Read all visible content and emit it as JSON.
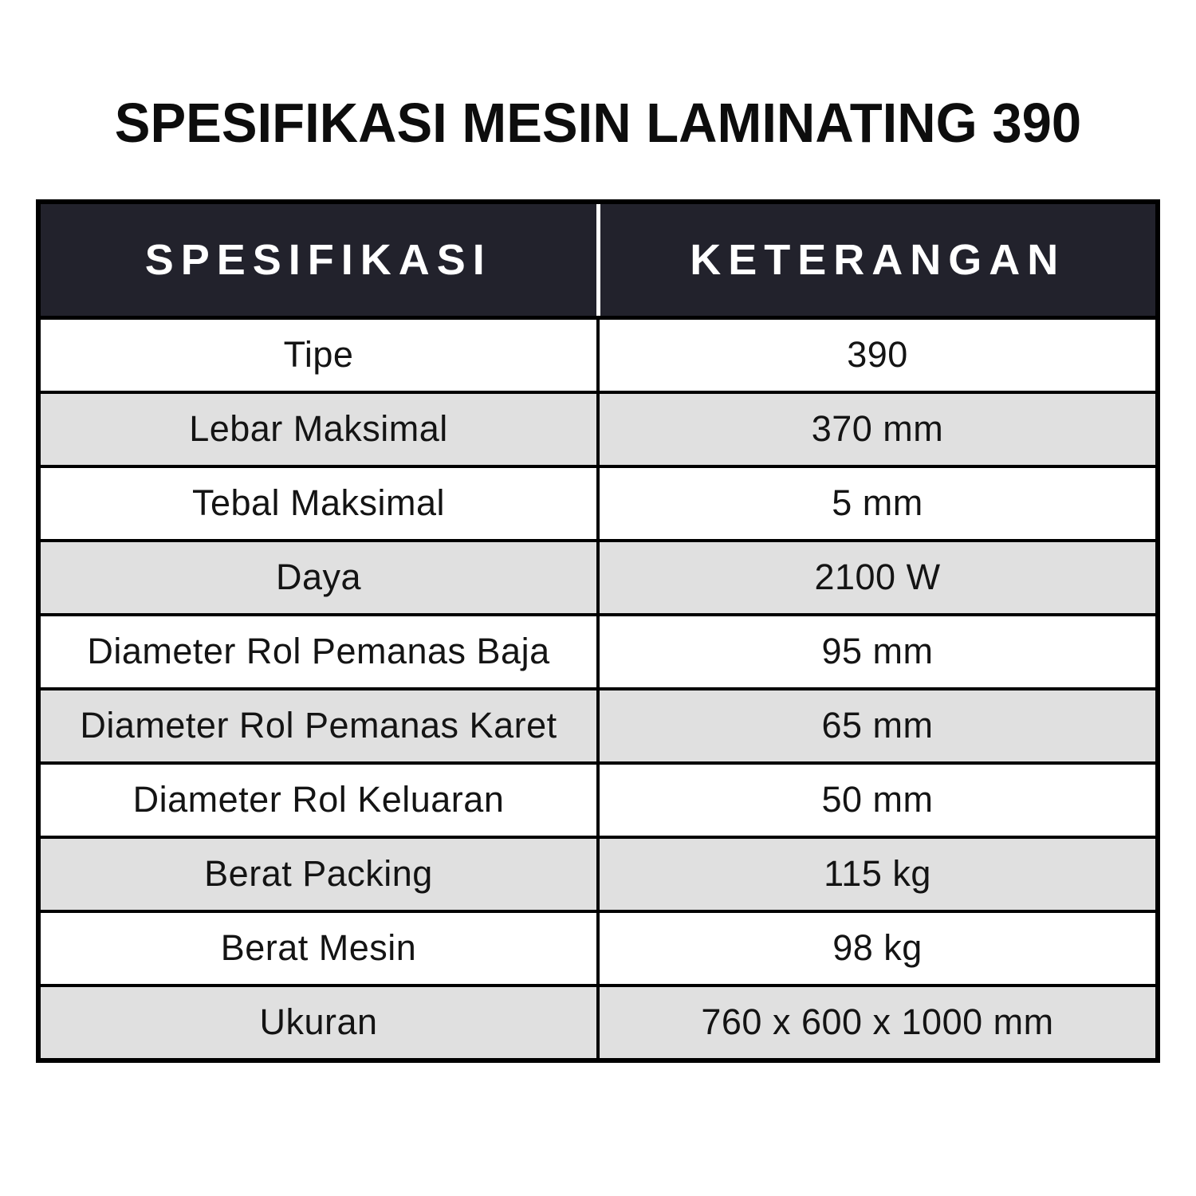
{
  "title": "SPESIFIKASI MESIN LAMINATING 390",
  "table": {
    "columns": [
      "SPESIFIKASI",
      "KETERANGAN"
    ],
    "rows": [
      {
        "label": "Tipe",
        "value": "390"
      },
      {
        "label": "Lebar Maksimal",
        "value": "370 mm"
      },
      {
        "label": "Tebal Maksimal",
        "value": "5 mm"
      },
      {
        "label": "Daya",
        "value": "2100 W"
      },
      {
        "label": "Diameter Rol Pemanas Baja",
        "value": "95 mm"
      },
      {
        "label": "Diameter Rol Pemanas Karet",
        "value": "65 mm"
      },
      {
        "label": "Diameter Rol Keluaran",
        "value": "50 mm"
      },
      {
        "label": "Berat Packing",
        "value": "115 kg"
      },
      {
        "label": "Berat Mesin",
        "value": "98 kg"
      },
      {
        "label": "Ukuran",
        "value": "760 x 600 x 1000 mm"
      }
    ]
  },
  "colors": {
    "header_bg": "#22222c",
    "header_text": "#ffffff",
    "row_alt_bg": "#e0e0e0",
    "border": "#000000",
    "body_text": "#141414"
  }
}
